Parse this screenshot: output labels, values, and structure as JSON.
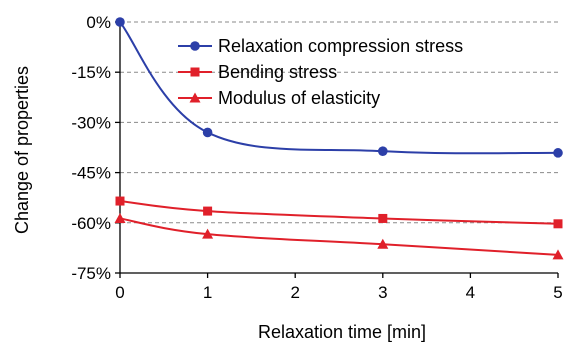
{
  "chart_data": {
    "type": "line",
    "title": "",
    "xlabel": "Relaxation time [min]",
    "ylabel": "Change of properties",
    "x_ticks": [
      "0",
      "1",
      "2",
      "3",
      "4",
      "5"
    ],
    "y_ticks": [
      "0%",
      "-15%",
      "-30%",
      "-45%",
      "-60%",
      "-75%"
    ],
    "xlim": [
      0,
      5
    ],
    "ylim": [
      -75,
      0
    ],
    "grid": "horizontal dashed",
    "legend_position": "top-right",
    "series": [
      {
        "name": "Relaxation compression stress",
        "color": "#2c3fa8",
        "marker": "circle",
        "x": [
          0,
          1,
          3,
          5
        ],
        "y": [
          0,
          -33,
          -38.6,
          -39.1
        ]
      },
      {
        "name": "Bending stress",
        "color": "#e0202a",
        "marker": "square",
        "x": [
          0,
          1,
          3,
          5
        ],
        "y": [
          -53.5,
          -56.5,
          -58.7,
          -60.3
        ]
      },
      {
        "name": "Modulus of elasticity",
        "color": "#e0202a",
        "marker": "triangle",
        "x": [
          0,
          1,
          3,
          5
        ],
        "y": [
          -58.7,
          -63.4,
          -66.4,
          -69.6
        ]
      }
    ]
  }
}
